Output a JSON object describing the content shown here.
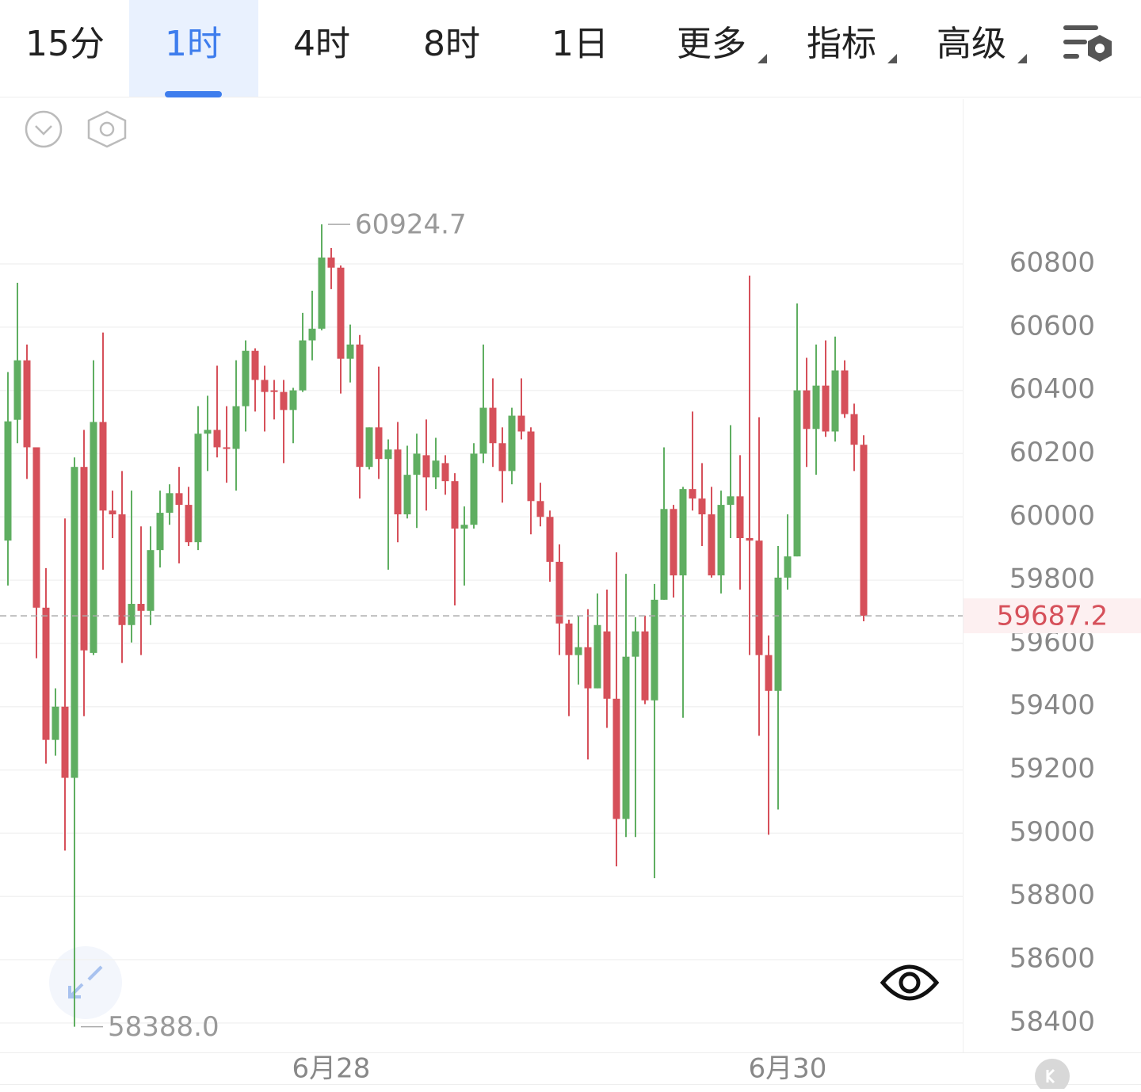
{
  "toolbar": {
    "tabs": [
      "15分",
      "1时",
      "4时",
      "8时",
      "1日",
      "更多",
      "指标",
      "高级"
    ],
    "active": 1
  },
  "chart_data": {
    "type": "candlestick",
    "categories": [
      null,
      null,
      null,
      null,
      null,
      null,
      null,
      null,
      null,
      null,
      null,
      null,
      null,
      null,
      null,
      null,
      null,
      null,
      null,
      null,
      null,
      null,
      null,
      null,
      null,
      null,
      null,
      null,
      null,
      null,
      null,
      null,
      null,
      null,
      "6月28",
      null,
      null,
      null,
      null,
      null,
      null,
      null,
      null,
      null,
      null,
      null,
      null,
      null,
      null,
      null,
      null,
      null,
      null,
      null,
      null,
      null,
      null,
      null,
      null,
      null,
      null,
      null,
      null,
      null,
      null,
      null,
      null,
      null,
      null,
      null,
      null,
      null,
      null,
      null,
      null,
      null,
      null,
      null,
      null,
      null,
      null,
      null,
      "6月30",
      null,
      null,
      null,
      null,
      null,
      null,
      null,
      null
    ],
    "open": [
      59925,
      60307,
      60495,
      60220,
      59713,
      59295,
      59400,
      59175,
      60158,
      59570,
      60300,
      60020,
      60008,
      59658,
      59725,
      59703,
      59895,
      60013,
      60075,
      60038,
      59920,
      60263,
      60275,
      60220,
      60215,
      60350,
      60525,
      60433,
      60400,
      60395,
      60338,
      60400,
      60558,
      60595,
      60820,
      60788,
      60500,
      60545,
      60158,
      60283,
      60183,
      60213,
      60008,
      60133,
      60195,
      60125,
      60170,
      60113,
      59963,
      59975,
      60200,
      60345,
      60233,
      60145,
      60320,
      60270,
      60050,
      60000,
      59858,
      59663,
      59563,
      59588,
      59458,
      59638,
      59425,
      59045,
      59558,
      59638,
      59420,
      59738,
      60025,
      59815,
      60088,
      60058,
      60008,
      59815,
      60038,
      60065,
      59933,
      59925,
      59563,
      59450,
      59808,
      59875,
      60400,
      60278,
      60415,
      60270,
      60463,
      60325,
      60228
    ],
    "high": [
      60458,
      60740,
      60545,
      60220,
      59838,
      59458,
      59995,
      60188,
      60275,
      60495,
      60583,
      60083,
      60145,
      60083,
      59970,
      59970,
      60083,
      60103,
      60158,
      60095,
      60350,
      60383,
      60478,
      60350,
      60495,
      60558,
      60533,
      60478,
      60433,
      60433,
      60408,
      60645,
      60715,
      60924.7,
      60850,
      60795,
      60608,
      60575,
      60283,
      60475,
      60245,
      60300,
      60225,
      60263,
      60308,
      60250,
      60195,
      60138,
      60033,
      60233,
      60545,
      60438,
      60283,
      60345,
      60438,
      60283,
      60108,
      60020,
      59913,
      59675,
      59688,
      59708,
      59758,
      59770,
      59888,
      59820,
      59683,
      59688,
      59788,
      60220,
      60038,
      60095,
      60333,
      60170,
      60095,
      60083,
      60290,
      60195,
      60763,
      60315,
      59625,
      59908,
      60008,
      60675,
      60503,
      60545,
      60558,
      60570,
      60495,
      60358,
      60258
    ],
    "low": [
      59783,
      60233,
      60120,
      59553,
      59220,
      59245,
      58945,
      58388,
      59370,
      59563,
      59833,
      59933,
      59538,
      59603,
      59563,
      59658,
      59840,
      59975,
      59853,
      59908,
      59895,
      60145,
      60188,
      60108,
      60083,
      60270,
      60333,
      60270,
      60308,
      60170,
      60233,
      60395,
      60495,
      60590,
      60720,
      60390,
      60425,
      60058,
      60150,
      60120,
      59833,
      59920,
      59995,
      59965,
      60020,
      60088,
      60070,
      59720,
      59783,
      59963,
      60170,
      60158,
      60045,
      60103,
      60245,
      59945,
      59970,
      59795,
      59563,
      59370,
      59470,
      59233,
      59458,
      59333,
      58895,
      58988,
      58988,
      59408,
      58858,
      59738,
      59745,
      59365,
      60020,
      59908,
      59808,
      59758,
      59933,
      59770,
      59563,
      59308,
      58995,
      59075,
      59770,
      59875,
      60158,
      60133,
      60253,
      60238,
      60313,
      60145,
      59670
    ],
    "close": [
      60302,
      60495,
      60220,
      59713,
      59295,
      59400,
      59175,
      60158,
      59578,
      60300,
      60020,
      60008,
      59658,
      59725,
      59703,
      59895,
      60013,
      60075,
      60038,
      59920,
      60263,
      60275,
      60220,
      60215,
      60350,
      60525,
      60433,
      60395,
      60395,
      60338,
      60400,
      60558,
      60595,
      60820,
      60788,
      60500,
      60545,
      60158,
      60283,
      60183,
      60213,
      60008,
      60133,
      60200,
      60125,
      60178,
      60113,
      59963,
      59975,
      60200,
      60345,
      60233,
      60145,
      60320,
      60270,
      60050,
      60000,
      59858,
      59663,
      59563,
      59588,
      59458,
      59658,
      59425,
      59045,
      59558,
      59638,
      59420,
      59738,
      60025,
      59815,
      60088,
      60058,
      60008,
      59815,
      60038,
      60065,
      59933,
      59925,
      59563,
      59450,
      59808,
      59875,
      60400,
      60278,
      60415,
      60270,
      60463,
      60325,
      60228,
      59687.2
    ],
    "up_color": "#5fae61",
    "down_color": "#d6505a",
    "ylim": [
      58307,
      61321
    ],
    "yticks": [
      58400,
      58600,
      58800,
      59000,
      59200,
      59400,
      59600,
      59800,
      60000,
      60200,
      60400,
      60600,
      60800
    ],
    "grid": true,
    "annotations": [
      {
        "value": 60924.7,
        "label": "60924.7",
        "index": 33
      },
      {
        "value": 58388,
        "label": "58388.0",
        "index": 7
      }
    ],
    "last_price": {
      "value": 59687.2,
      "label": "59687.2"
    }
  }
}
